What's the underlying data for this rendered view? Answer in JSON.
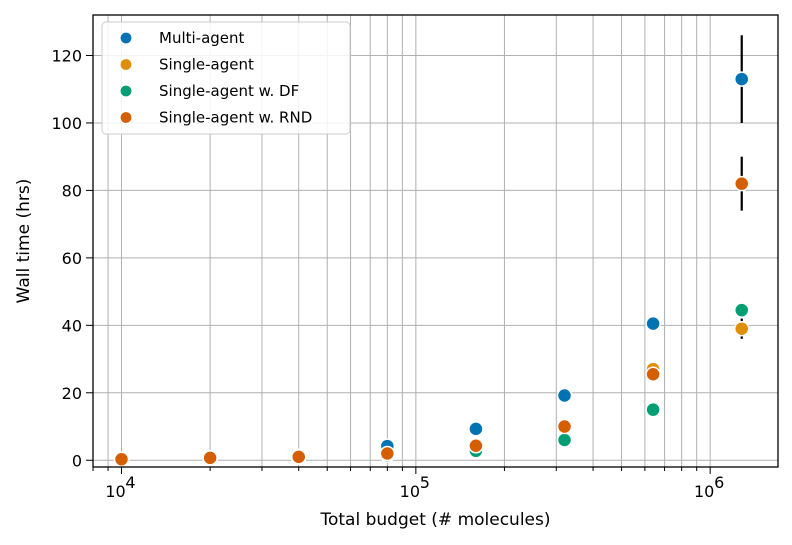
{
  "chart_data": {
    "type": "scatter",
    "xscale": "log",
    "xlabel": "Total budget (# molecules)",
    "ylabel": "Wall time (hrs)",
    "xlim": [
      8000,
      1700000
    ],
    "ylim": [
      -2,
      132
    ],
    "grid": true,
    "legend_position": "top-left",
    "x_ticks": [
      {
        "value": 10000,
        "base": "10",
        "exp": "4"
      },
      {
        "value": 100000,
        "base": "10",
        "exp": "5"
      },
      {
        "value": 1000000,
        "base": "10",
        "exp": "6"
      }
    ],
    "y_ticks": [
      0,
      20,
      40,
      60,
      80,
      100,
      120
    ],
    "series": [
      {
        "name": "Multi-agent",
        "color": "#0173b2",
        "x": [
          10000,
          20000,
          40000,
          80000,
          160000,
          320000,
          640000,
          1280000
        ],
        "y": [
          0.3,
          0.7,
          1.2,
          4.2,
          9.3,
          19.2,
          40.5,
          113
        ]
      },
      {
        "name": "Single-agent",
        "color": "#de8f05",
        "x": [
          10000,
          20000,
          40000,
          80000,
          160000,
          320000,
          640000,
          1280000
        ],
        "y": [
          0.3,
          0.6,
          1.0,
          1.8,
          3.8,
          9.8,
          27.0,
          39.0
        ]
      },
      {
        "name": "Single-agent w. DF",
        "color": "#029e73",
        "x": [
          10000,
          20000,
          40000,
          80000,
          160000,
          320000,
          640000,
          1280000
        ],
        "y": [
          0.2,
          0.5,
          0.8,
          1.5,
          2.8,
          6.0,
          15.0,
          44.5
        ]
      },
      {
        "name": "Single-agent w. RND",
        "color": "#d55e00",
        "x": [
          10000,
          20000,
          40000,
          80000,
          160000,
          320000,
          640000,
          1280000
        ],
        "y": [
          0.3,
          0.7,
          1.0,
          2.0,
          4.3,
          10.0,
          25.5,
          82.0
        ]
      }
    ],
    "error_bars": [
      {
        "x": 1280000,
        "low": 100,
        "high": 126
      },
      {
        "x": 1280000,
        "low": 74,
        "high": 90
      },
      {
        "x": 1280000,
        "low": 36,
        "high": 42
      },
      {
        "x": 640000,
        "low": 38.5,
        "high": 42
      }
    ]
  }
}
